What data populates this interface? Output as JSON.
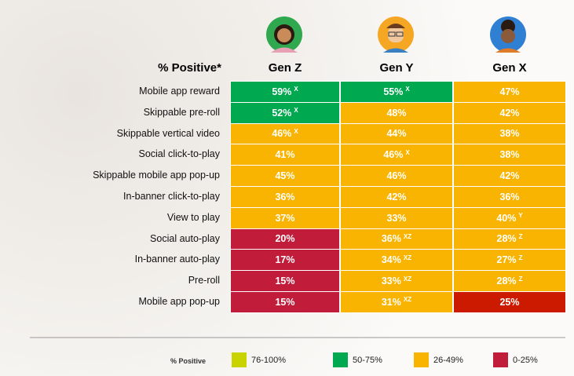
{
  "table": {
    "corner": "% Positive*",
    "columns": [
      "Gen Z",
      "Gen Y",
      "Gen X"
    ],
    "rows": [
      {
        "label": "Mobile app reward",
        "cells": [
          {
            "text": "59%",
            "sup": "X",
            "color": "#00a84f"
          },
          {
            "text": "55%",
            "sup": "X",
            "color": "#00a84f"
          },
          {
            "text": "47%",
            "color": "#f8b400"
          }
        ]
      },
      {
        "label": "Skippable pre-roll",
        "cells": [
          {
            "text": "52%",
            "sup": "X",
            "color": "#00a84f"
          },
          {
            "text": "48%",
            "color": "#f8b400"
          },
          {
            "text": "42%",
            "color": "#f8b400"
          }
        ]
      },
      {
        "label": "Skippable vertical video",
        "cells": [
          {
            "text": "46%",
            "sup": "X",
            "color": "#f8b400"
          },
          {
            "text": "44%",
            "color": "#f8b400"
          },
          {
            "text": "38%",
            "color": "#f8b400"
          }
        ]
      },
      {
        "label": "Social click-to-play",
        "cells": [
          {
            "text": "41%",
            "color": "#f8b400"
          },
          {
            "text": "46%",
            "sup": "X",
            "color": "#f8b400"
          },
          {
            "text": "38%",
            "color": "#f8b400"
          }
        ]
      },
      {
        "label": "Skippable mobile app pop-up",
        "cells": [
          {
            "text": "45%",
            "color": "#f8b400"
          },
          {
            "text": "46%",
            "color": "#f8b400"
          },
          {
            "text": "42%",
            "color": "#f8b400"
          }
        ]
      },
      {
        "label": "In-banner click-to-play",
        "cells": [
          {
            "text": "36%",
            "color": "#f8b400"
          },
          {
            "text": "42%",
            "color": "#f8b400"
          },
          {
            "text": "36%",
            "color": "#f8b400"
          }
        ]
      },
      {
        "label": "View to play",
        "cells": [
          {
            "text": "37%",
            "color": "#f8b400"
          },
          {
            "text": "33%",
            "color": "#f8b400"
          },
          {
            "text": "40%",
            "sup": "Y",
            "color": "#f8b400"
          }
        ]
      },
      {
        "label": "Social auto-play",
        "cells": [
          {
            "text": "20%",
            "color": "#c21c3b"
          },
          {
            "text": "36%",
            "sup": "XZ",
            "color": "#f8b400"
          },
          {
            "text": "28%",
            "sup": "Z",
            "color": "#f8b400"
          }
        ]
      },
      {
        "label": "In-banner auto-play",
        "cells": [
          {
            "text": "17%",
            "color": "#c21c3b"
          },
          {
            "text": "34%",
            "sup": "XZ",
            "color": "#f8b400"
          },
          {
            "text": "27%",
            "sup": "Z",
            "color": "#f8b400"
          }
        ]
      },
      {
        "label": "Pre-roll",
        "cells": [
          {
            "text": "15%",
            "color": "#c21c3b"
          },
          {
            "text": "33%",
            "sup": "XZ",
            "color": "#f8b400"
          },
          {
            "text": "28%",
            "sup": "Z",
            "color": "#f8b400"
          }
        ]
      },
      {
        "label": "Mobile app pop-up",
        "cells": [
          {
            "text": "15%",
            "color": "#c21c3b"
          },
          {
            "text": "31%",
            "sup": "XZ",
            "color": "#f8b400"
          },
          {
            "text": "25%",
            "color": "#cc1a00"
          }
        ]
      }
    ]
  },
  "legend": {
    "title": "% Positive",
    "items": [
      {
        "label": "76-100%",
        "color": "#c9d300"
      },
      {
        "label": "50-75%",
        "color": "#00a84f"
      },
      {
        "label": "26-49%",
        "color": "#f8b400"
      },
      {
        "label": "0-25%",
        "color": "#c21c3b"
      }
    ]
  }
}
